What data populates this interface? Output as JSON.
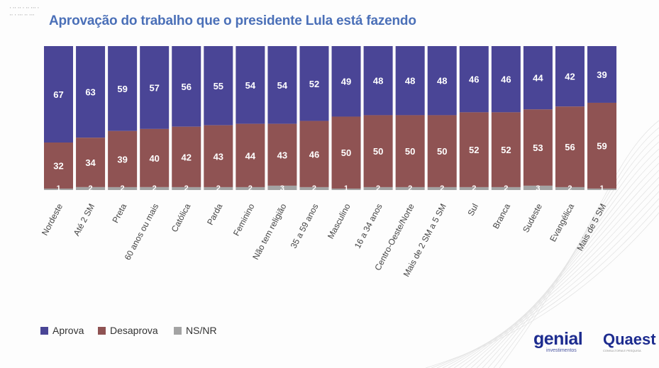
{
  "header": {
    "title": "Aprovação do trabalho que o presidente Lula está fazendo"
  },
  "logos": {
    "genial": "genial",
    "genial_sub": "investimentos",
    "quaest": "Quaest",
    "quaest_sub": "CONSULTORIA E PESQUISA"
  },
  "colors": {
    "aprova": "#4a4596",
    "desaprova": "#8f5353",
    "nsnr": "#a3a3a3",
    "title": "#4b70b8"
  },
  "chart_data": {
    "type": "bar",
    "stacked": true,
    "title": "Aprovação do trabalho que o presidente Lula está fazendo",
    "categories": [
      "Nordeste",
      "Até 2 SM",
      "Preta",
      "60 anos ou mais",
      "Católica",
      "Parda",
      "Feminino",
      "Não tem religião",
      "35 a 59 anos",
      "Masculino",
      "16 a 34 anos",
      "Centro-Oeste/Norte",
      "Mais de 2 SM a 5 SM",
      "Sul",
      "Branca",
      "Sudeste",
      "Evangélica",
      "Mais de 5 SM"
    ],
    "series": [
      {
        "name": "Aprova",
        "values": [
          67,
          63,
          59,
          57,
          56,
          55,
          54,
          54,
          52,
          49,
          48,
          48,
          48,
          46,
          46,
          44,
          42,
          39
        ]
      },
      {
        "name": "Desaprova",
        "values": [
          32,
          34,
          39,
          40,
          42,
          43,
          44,
          43,
          46,
          50,
          50,
          50,
          50,
          52,
          52,
          53,
          56,
          59
        ]
      },
      {
        "name": "NS/NR",
        "values": [
          1,
          2,
          2,
          2,
          2,
          2,
          2,
          3,
          2,
          1,
          2,
          2,
          2,
          2,
          2,
          3,
          2,
          1
        ]
      }
    ],
    "legend_position": "bottom-left",
    "grid": false
  }
}
